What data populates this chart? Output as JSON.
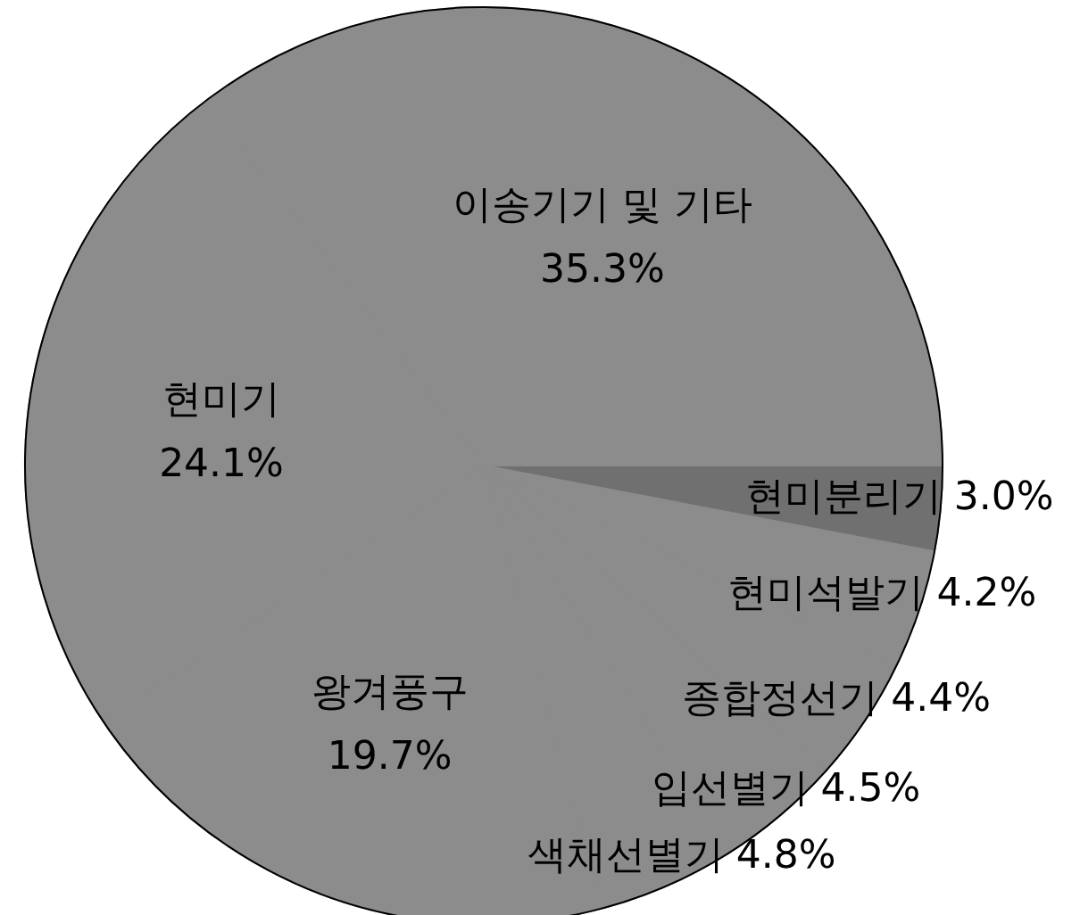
{
  "chart_data": {
    "type": "pie",
    "categories": [
      "현미분리기",
      "현미석발기",
      "종합정선기",
      "입선별기",
      "색채선별기",
      "왕겨풍구",
      "현미기",
      "이송기기 및 기타"
    ],
    "values": [
      3.0,
      4.2,
      4.4,
      4.5,
      4.8,
      19.7,
      24.1,
      35.3
    ],
    "value_labels": [
      "3.0%",
      "4.2%",
      "4.4%",
      "4.5%",
      "4.8%",
      "19.7%",
      "24.1%",
      "35.3%"
    ],
    "colors": [
      "#707070",
      "#8c8c8c",
      "#8c8c8c",
      "#8c8c8c",
      "#8c8c8c",
      "#8c8c8c",
      "#8c8c8c",
      "#8c8c8c"
    ]
  }
}
